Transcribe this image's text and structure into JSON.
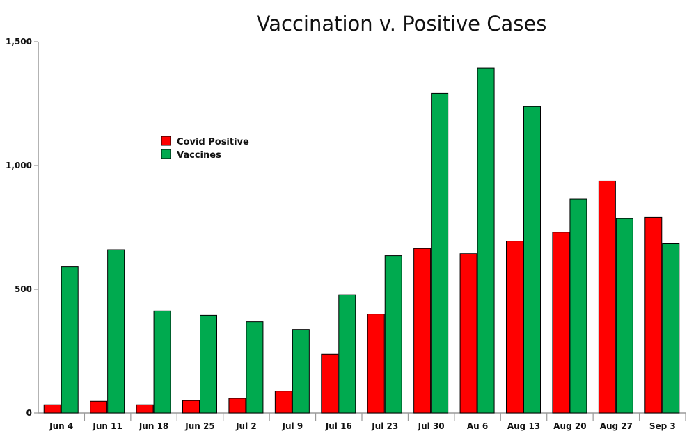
{
  "chart_data": {
    "type": "bar",
    "title": "Vaccination v. Positive Cases",
    "categories": [
      "Jun 4",
      "Jun 11",
      "Jun 18",
      "Jun 25",
      "Jul 2",
      "Jul 9",
      "Jul 16",
      "Jul 23",
      "Jul 30",
      "Au 6",
      "Aug 13",
      "Aug 20",
      "Aug 27",
      "Sep 3"
    ],
    "series": [
      {
        "name": "Covid Positive",
        "color": "#ff0000",
        "values": [
          33,
          47,
          33,
          50,
          59,
          88,
          238,
          400,
          665,
          644,
          695,
          731,
          937,
          791
        ]
      },
      {
        "name": "Vaccines",
        "color": "#00aa4f",
        "values": [
          591,
          660,
          412,
          395,
          369,
          338,
          477,
          636,
          1291,
          1393,
          1238,
          865,
          786,
          684
        ]
      }
    ],
    "yticks": [
      "0",
      "500",
      "1,000",
      "1,500"
    ],
    "ylim": [
      0,
      1500
    ],
    "legend_position": "upper-left",
    "grid": false
  }
}
